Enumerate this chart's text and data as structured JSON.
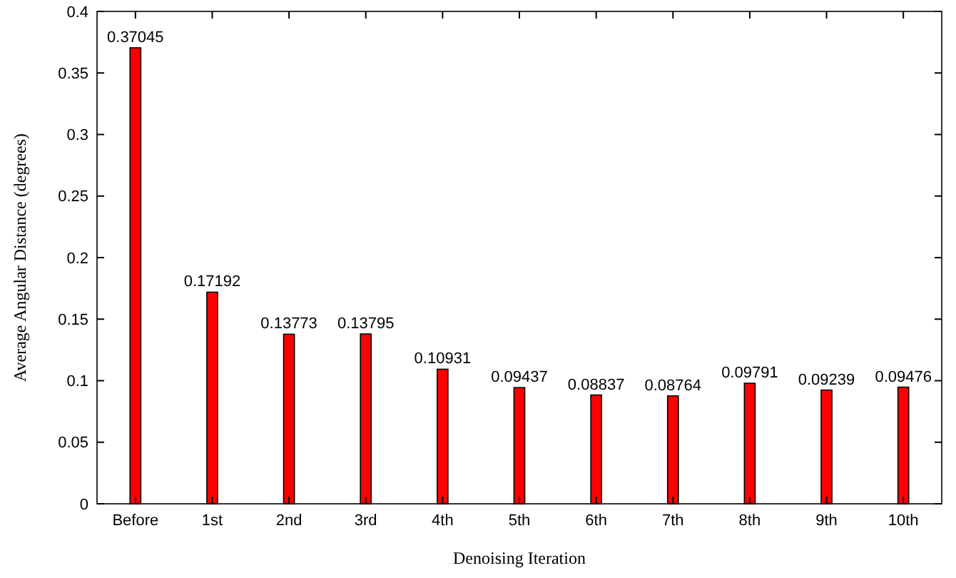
{
  "chart_data": {
    "type": "bar",
    "xlabel": "Denoising Iteration",
    "ylabel": "Average Angular Distance (degrees)",
    "categories": [
      "Before",
      "1st",
      "2nd",
      "3rd",
      "4th",
      "5th",
      "6th",
      "7th",
      "8th",
      "9th",
      "10th"
    ],
    "values": [
      0.37045,
      0.17192,
      0.13773,
      0.13795,
      0.10931,
      0.09437,
      0.08837,
      0.08764,
      0.09791,
      0.09239,
      0.09476
    ],
    "color": "#ff0000",
    "ylim": [
      0,
      0.4
    ],
    "yticks": [
      0,
      0.05,
      0.1,
      0.15,
      0.2,
      0.25,
      0.3,
      0.35,
      0.4
    ],
    "grid": false,
    "data_labels": true
  }
}
